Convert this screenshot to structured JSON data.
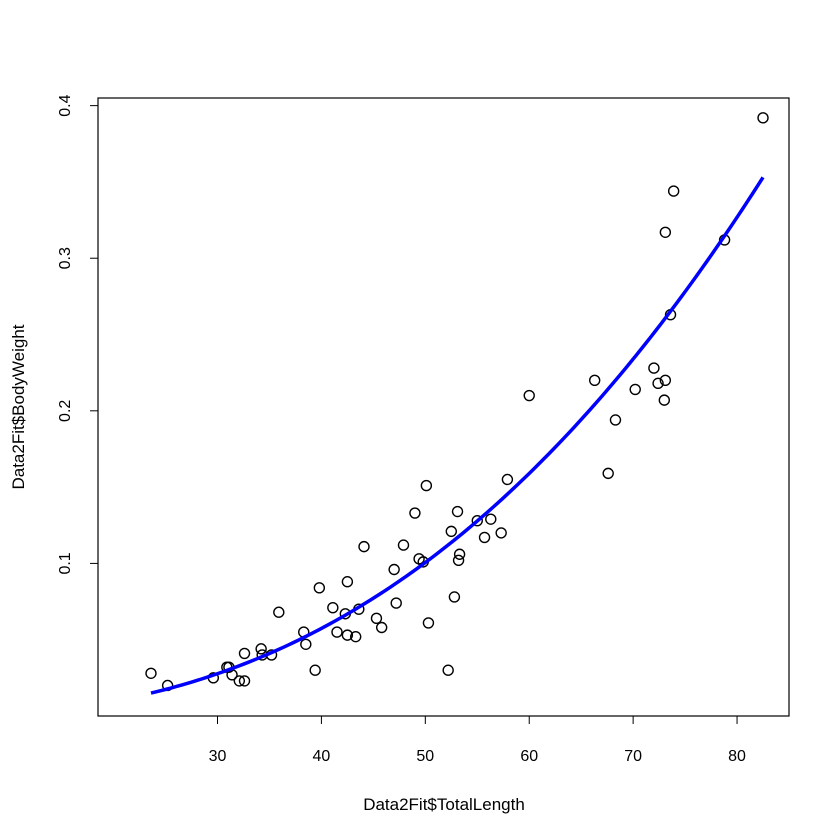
{
  "chart_data": {
    "type": "scatter",
    "title": "",
    "xlabel": "Data2Fit$TotalLength",
    "ylabel": "Data2Fit$BodyWeight",
    "xlim": [
      18.5,
      85
    ],
    "ylim": [
      0.0,
      0.405
    ],
    "x_ticks": [
      30,
      40,
      50,
      60,
      70,
      80
    ],
    "y_ticks": [
      0.1,
      0.2,
      0.3,
      0.4
    ],
    "x_tick_labels": [
      "30",
      "40",
      "50",
      "60",
      "70",
      "80"
    ],
    "y_tick_labels": [
      "0.1",
      "0.2",
      "0.3",
      "0.4"
    ],
    "grid": false,
    "legend": "none",
    "point_color": "#000000",
    "curve_color": "#0000ff",
    "points": [
      [
        23.6,
        0.028
      ],
      [
        25.2,
        0.02
      ],
      [
        29.6,
        0.025
      ],
      [
        30.9,
        0.032
      ],
      [
        31.1,
        0.032
      ],
      [
        31.4,
        0.027
      ],
      [
        32.1,
        0.023
      ],
      [
        32.6,
        0.023
      ],
      [
        32.6,
        0.041
      ],
      [
        34.2,
        0.044
      ],
      [
        34.3,
        0.04
      ],
      [
        35.2,
        0.04
      ],
      [
        35.9,
        0.068
      ],
      [
        38.3,
        0.055
      ],
      [
        38.5,
        0.047
      ],
      [
        39.4,
        0.03
      ],
      [
        39.8,
        0.084
      ],
      [
        41.1,
        0.071
      ],
      [
        41.5,
        0.055
      ],
      [
        42.3,
        0.067
      ],
      [
        42.5,
        0.088
      ],
      [
        42.5,
        0.053
      ],
      [
        43.3,
        0.052
      ],
      [
        43.6,
        0.07
      ],
      [
        44.1,
        0.111
      ],
      [
        45.3,
        0.064
      ],
      [
        45.8,
        0.058
      ],
      [
        47.0,
        0.096
      ],
      [
        47.2,
        0.074
      ],
      [
        47.9,
        0.112
      ],
      [
        49.0,
        0.133
      ],
      [
        49.4,
        0.103
      ],
      [
        49.8,
        0.101
      ],
      [
        50.1,
        0.151
      ],
      [
        50.3,
        0.061
      ],
      [
        52.2,
        0.03
      ],
      [
        52.5,
        0.121
      ],
      [
        52.8,
        0.078
      ],
      [
        53.1,
        0.134
      ],
      [
        53.2,
        0.102
      ],
      [
        53.3,
        0.106
      ],
      [
        55.0,
        0.128
      ],
      [
        55.7,
        0.117
      ],
      [
        56.3,
        0.129
      ],
      [
        57.3,
        0.12
      ],
      [
        57.9,
        0.155
      ],
      [
        60.0,
        0.21
      ],
      [
        66.3,
        0.22
      ],
      [
        67.6,
        0.159
      ],
      [
        68.3,
        0.194
      ],
      [
        70.2,
        0.214
      ],
      [
        72.0,
        0.228
      ],
      [
        72.4,
        0.218
      ],
      [
        73.0,
        0.207
      ],
      [
        73.1,
        0.22
      ],
      [
        73.1,
        0.317
      ],
      [
        73.6,
        0.263
      ],
      [
        73.9,
        0.344
      ],
      [
        78.8,
        0.312
      ],
      [
        82.5,
        0.392
      ]
    ],
    "fit_curve": {
      "type": "power",
      "x_range": [
        23.6,
        82.5
      ],
      "y_at_start": 0.015,
      "y_at_end": 0.353,
      "exponent": 2.5
    }
  }
}
